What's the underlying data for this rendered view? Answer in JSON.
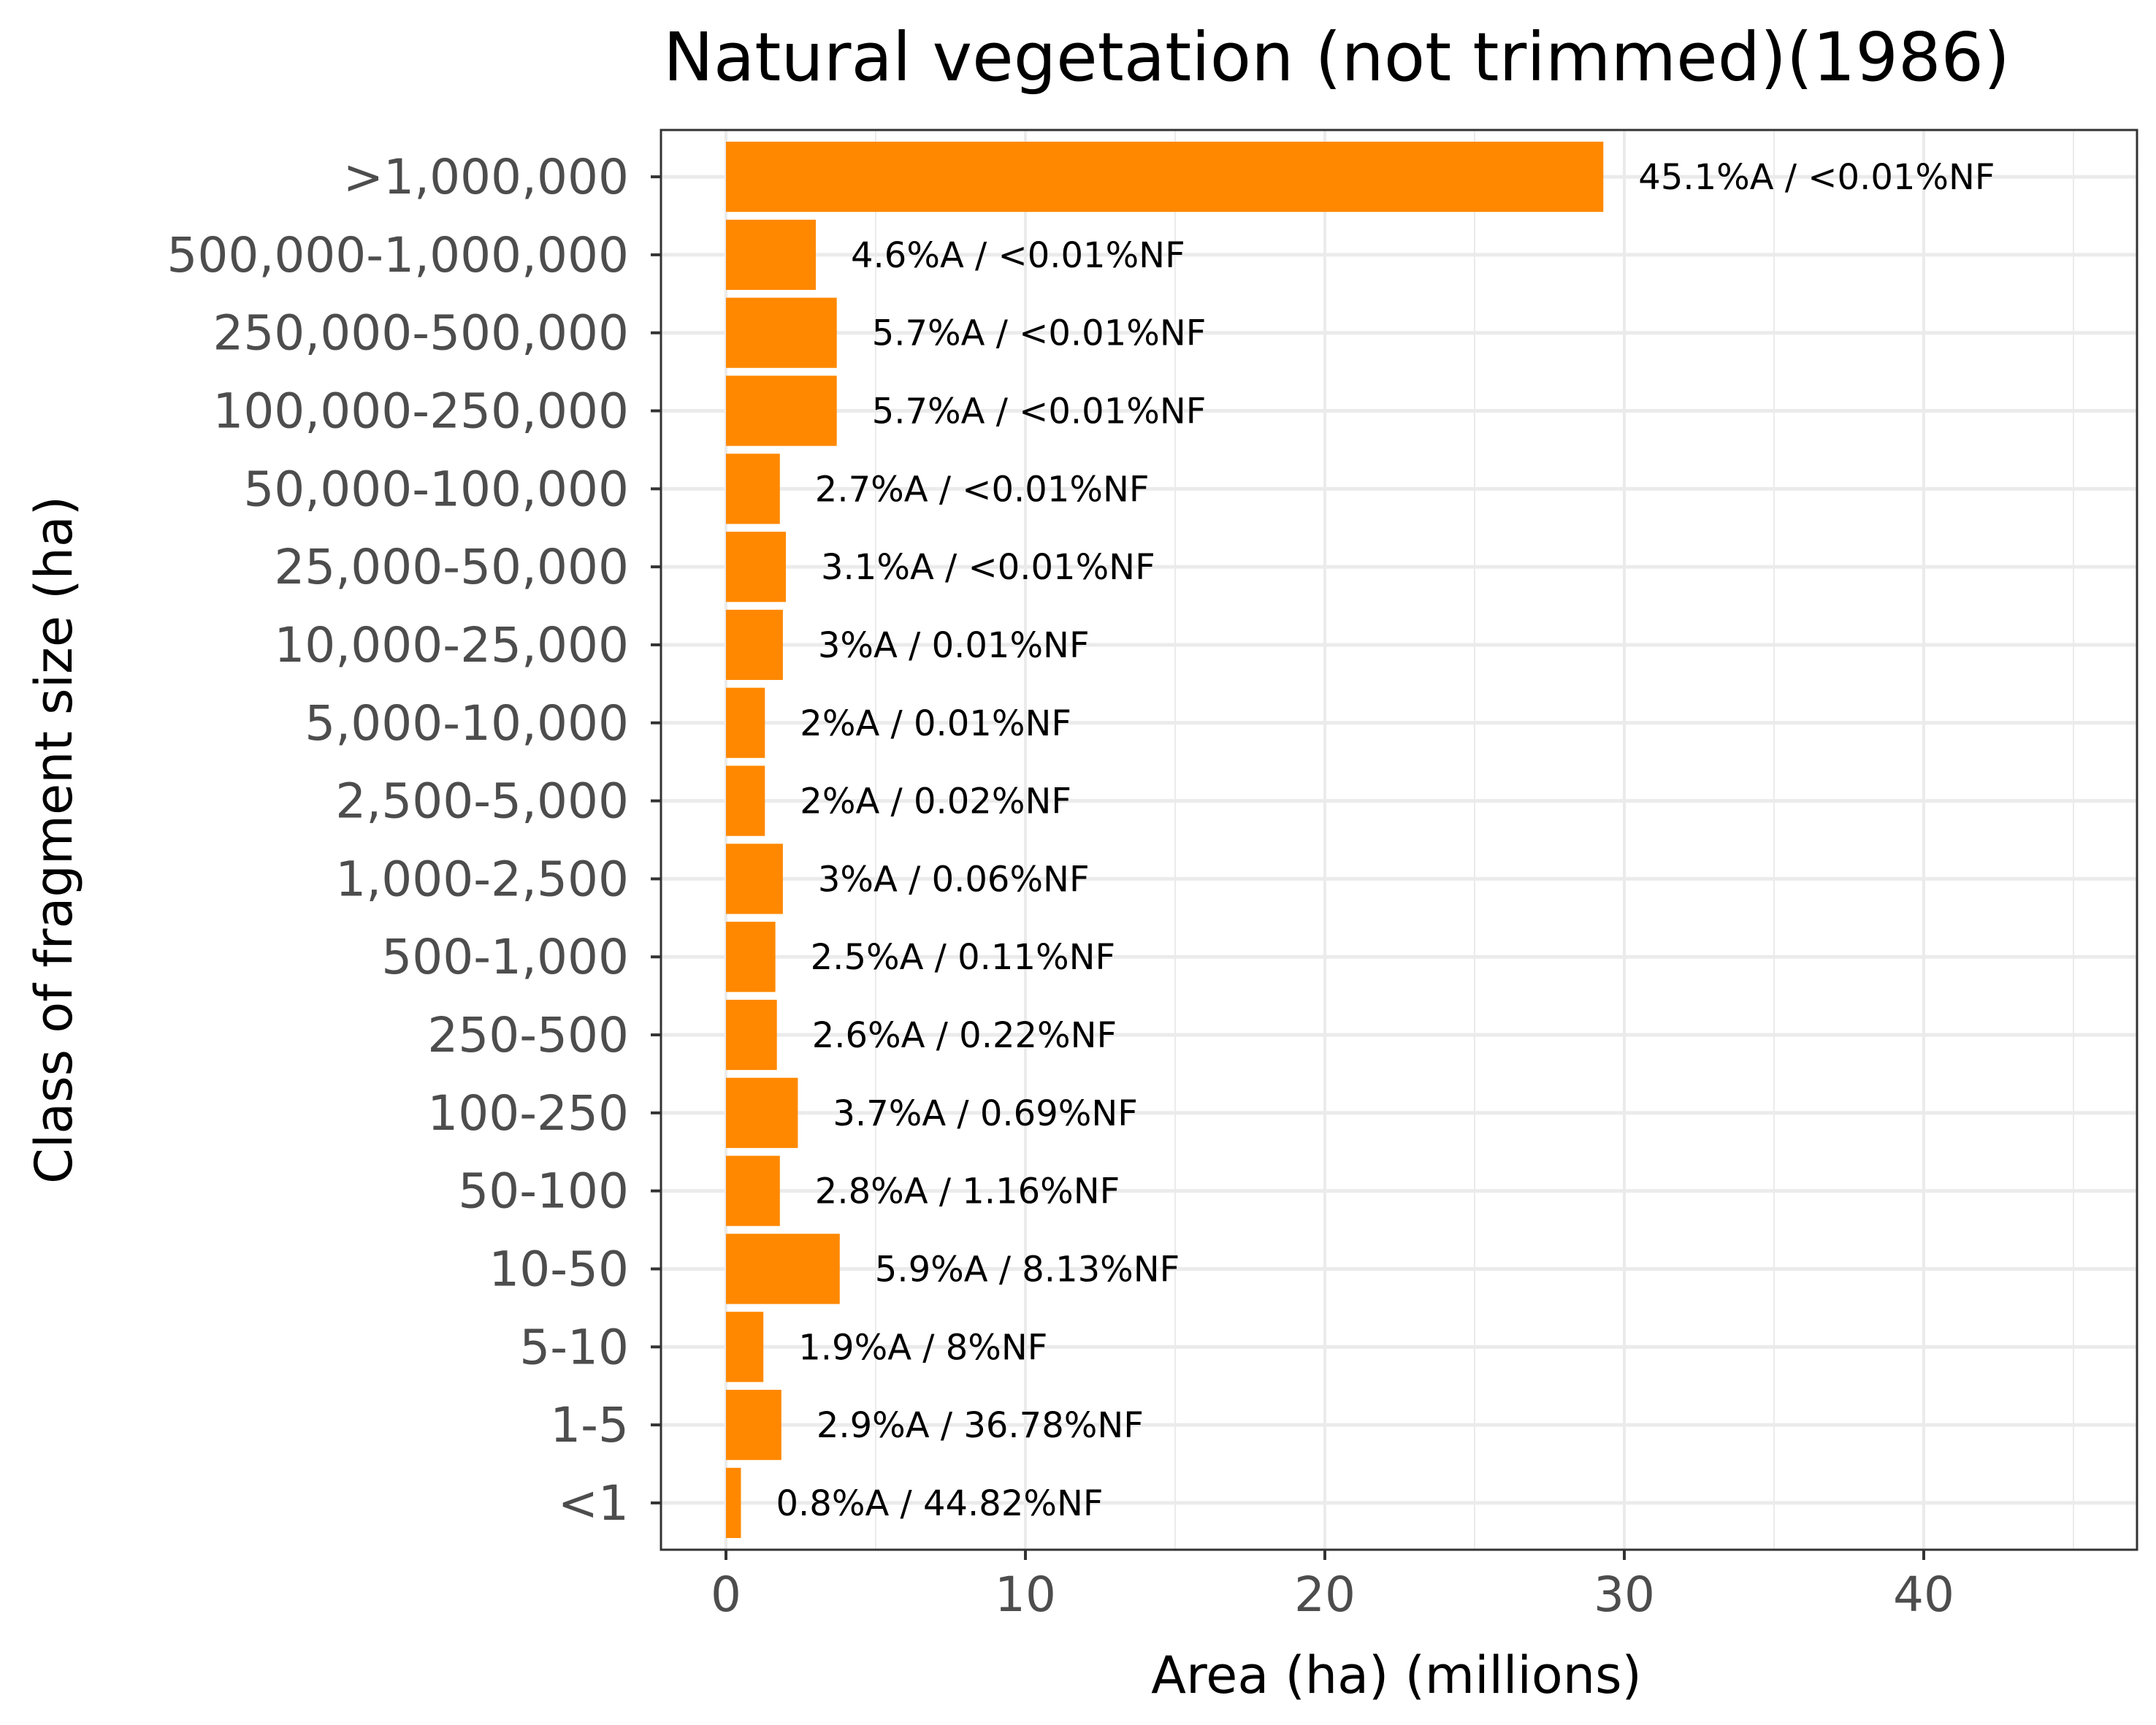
{
  "chart_data": {
    "type": "bar",
    "orientation": "horizontal",
    "title": "Natural vegetation (not trimmed)(1986)",
    "xlabel": "Area (ha) (millions)",
    "ylabel": "Class of fragment size (ha)",
    "xlim": [
      0,
      47
    ],
    "xticks": [
      "0",
      "10",
      "20",
      "30",
      "40"
    ],
    "xtick_values": [
      0,
      10,
      20,
      30,
      40
    ],
    "grid": true,
    "bar_color": "#ff8800",
    "categories": [
      ">1,000,000",
      "500,000-1,000,000",
      "250,000-500,000",
      "100,000-250,000",
      "50,000-100,000",
      "25,000-50,000",
      "10,000-25,000",
      "5,000-10,000",
      "2,500-5,000",
      "1,000-2,500",
      "500-1,000",
      "250-500",
      "100-250",
      "50-100",
      "10-50",
      "5-10",
      "1-5",
      "<1"
    ],
    "values": [
      29.3,
      3.0,
      3.7,
      3.7,
      1.8,
      2.0,
      1.9,
      1.3,
      1.3,
      1.9,
      1.65,
      1.7,
      2.4,
      1.8,
      3.8,
      1.25,
      1.85,
      0.5
    ],
    "data_labels": [
      "45.1%A / <0.01%NF",
      "4.6%A / <0.01%NF",
      "5.7%A / <0.01%NF",
      "5.7%A / <0.01%NF",
      "2.7%A / <0.01%NF",
      "3.1%A / <0.01%NF",
      "3%A / 0.01%NF",
      "2%A / 0.01%NF",
      "2%A / 0.02%NF",
      "3%A / 0.06%NF",
      "2.5%A / 0.11%NF",
      "2.6%A / 0.22%NF",
      "3.7%A / 0.69%NF",
      "2.8%A / 1.16%NF",
      "5.9%A / 8.13%NF",
      "1.9%A / 8%NF",
      "2.9%A / 36.78%NF",
      "0.8%A / 44.82%NF"
    ]
  }
}
